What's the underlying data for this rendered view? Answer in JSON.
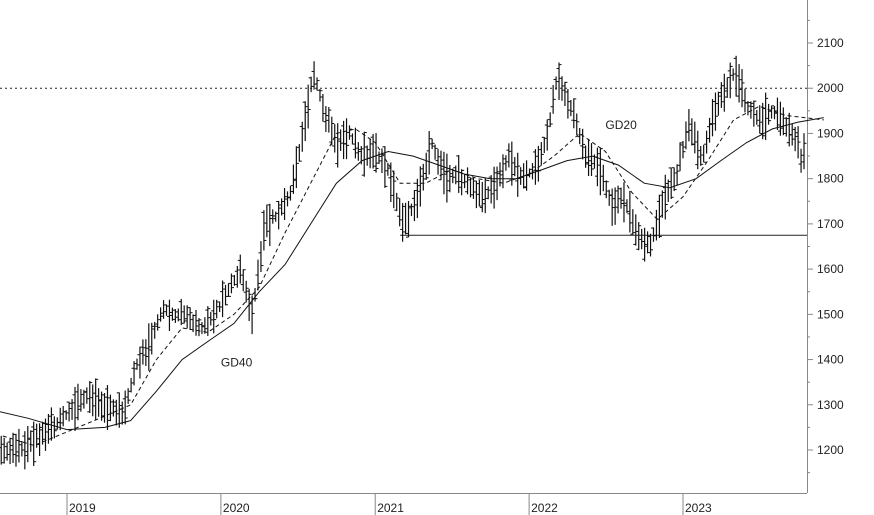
{
  "chart_data": {
    "type": "line",
    "subtype": "ohlc-bars",
    "title": "",
    "xlabel": "",
    "ylabel": "",
    "x_ticks": [
      "2019",
      "2020",
      "2021",
      "2022",
      "2023"
    ],
    "y_ticks": [
      1200,
      1300,
      1400,
      1500,
      1600,
      1700,
      1800,
      1900,
      2000,
      2100
    ],
    "ylim": [
      1120,
      2200
    ],
    "xlim": [
      "2018-07-01",
      "2023-12-15"
    ],
    "grid": false,
    "y_axis_position": "right",
    "series": [
      {
        "name": "",
        "style": "ohlc",
        "points": [
          {
            "date": "2018-07-01",
            "v": 1195
          },
          {
            "date": "2018-09-01",
            "v": 1200
          },
          {
            "date": "2018-11-01",
            "v": 1230
          },
          {
            "date": "2019-01-01",
            "v": 1280
          },
          {
            "date": "2019-02-15",
            "v": 1320
          },
          {
            "date": "2019-04-01",
            "v": 1295
          },
          {
            "date": "2019-05-15",
            "v": 1280
          },
          {
            "date": "2019-06-15",
            "v": 1390
          },
          {
            "date": "2019-07-15",
            "v": 1430
          },
          {
            "date": "2019-08-15",
            "v": 1510
          },
          {
            "date": "2019-09-15",
            "v": 1500
          },
          {
            "date": "2019-10-15",
            "v": 1495
          },
          {
            "date": "2019-11-15",
            "v": 1465
          },
          {
            "date": "2020-01-01",
            "v": 1520
          },
          {
            "date": "2020-02-15",
            "v": 1600
          },
          {
            "date": "2020-03-15",
            "v": 1500
          },
          {
            "date": "2020-04-15",
            "v": 1700
          },
          {
            "date": "2020-05-15",
            "v": 1720
          },
          {
            "date": "2020-06-15",
            "v": 1770
          },
          {
            "date": "2020-07-15",
            "v": 1900
          },
          {
            "date": "2020-08-07",
            "v": 2040
          },
          {
            "date": "2020-09-01",
            "v": 1950
          },
          {
            "date": "2020-10-01",
            "v": 1880
          },
          {
            "date": "2020-11-01",
            "v": 1900
          },
          {
            "date": "2020-12-01",
            "v": 1850
          },
          {
            "date": "2021-01-01",
            "v": 1860
          },
          {
            "date": "2021-02-01",
            "v": 1820
          },
          {
            "date": "2021-03-08",
            "v": 1700
          },
          {
            "date": "2021-04-15",
            "v": 1760
          },
          {
            "date": "2021-05-15",
            "v": 1880
          },
          {
            "date": "2021-06-15",
            "v": 1800
          },
          {
            "date": "2021-07-15",
            "v": 1810
          },
          {
            "date": "2021-08-15",
            "v": 1780
          },
          {
            "date": "2021-09-15",
            "v": 1760
          },
          {
            "date": "2021-10-15",
            "v": 1790
          },
          {
            "date": "2021-11-15",
            "v": 1850
          },
          {
            "date": "2021-12-15",
            "v": 1800
          },
          {
            "date": "2022-01-15",
            "v": 1820
          },
          {
            "date": "2022-02-15",
            "v": 1900
          },
          {
            "date": "2022-03-08",
            "v": 2020
          },
          {
            "date": "2022-04-15",
            "v": 1950
          },
          {
            "date": "2022-05-15",
            "v": 1850
          },
          {
            "date": "2022-06-15",
            "v": 1830
          },
          {
            "date": "2022-07-15",
            "v": 1740
          },
          {
            "date": "2022-08-15",
            "v": 1760
          },
          {
            "date": "2022-09-15",
            "v": 1670
          },
          {
            "date": "2022-10-15",
            "v": 1650
          },
          {
            "date": "2022-11-15",
            "v": 1750
          },
          {
            "date": "2022-12-15",
            "v": 1800
          },
          {
            "date": "2023-01-15",
            "v": 1920
          },
          {
            "date": "2023-02-15",
            "v": 1840
          },
          {
            "date": "2023-03-15",
            "v": 1950
          },
          {
            "date": "2023-04-15",
            "v": 2000
          },
          {
            "date": "2023-05-04",
            "v": 2040
          },
          {
            "date": "2023-06-01",
            "v": 1960
          },
          {
            "date": "2023-07-01",
            "v": 1930
          },
          {
            "date": "2023-08-01",
            "v": 1950
          },
          {
            "date": "2023-09-01",
            "v": 1920
          },
          {
            "date": "2023-10-01",
            "v": 1880
          },
          {
            "date": "2023-10-10",
            "v": 1830
          },
          {
            "date": "2023-11-01",
            "v": 1980
          },
          {
            "date": "2023-12-01",
            "v": 1960
          }
        ]
      },
      {
        "name": "GD20",
        "style": "dashed",
        "points": [
          {
            "date": "2018-07-01",
            "v": 1240
          },
          {
            "date": "2018-10-15",
            "v": 1210
          },
          {
            "date": "2019-01-01",
            "v": 1240
          },
          {
            "date": "2019-04-01",
            "v": 1275
          },
          {
            "date": "2019-06-01",
            "v": 1300
          },
          {
            "date": "2019-08-01",
            "v": 1400
          },
          {
            "date": "2019-10-01",
            "v": 1470
          },
          {
            "date": "2019-12-01",
            "v": 1460
          },
          {
            "date": "2020-02-01",
            "v": 1500
          },
          {
            "date": "2020-04-01",
            "v": 1560
          },
          {
            "date": "2020-06-01",
            "v": 1680
          },
          {
            "date": "2020-08-01",
            "v": 1790
          },
          {
            "date": "2020-10-01",
            "v": 1900
          },
          {
            "date": "2020-11-15",
            "v": 1910
          },
          {
            "date": "2021-01-01",
            "v": 1880
          },
          {
            "date": "2021-03-01",
            "v": 1790
          },
          {
            "date": "2021-05-01",
            "v": 1790
          },
          {
            "date": "2021-07-01",
            "v": 1820
          },
          {
            "date": "2021-09-01",
            "v": 1800
          },
          {
            "date": "2021-11-01",
            "v": 1790
          },
          {
            "date": "2022-01-01",
            "v": 1810
          },
          {
            "date": "2022-03-01",
            "v": 1850
          },
          {
            "date": "2022-05-01",
            "v": 1900
          },
          {
            "date": "2022-07-01",
            "v": 1860
          },
          {
            "date": "2022-09-01",
            "v": 1770
          },
          {
            "date": "2022-11-01",
            "v": 1710
          },
          {
            "date": "2023-01-01",
            "v": 1760
          },
          {
            "date": "2023-03-01",
            "v": 1840
          },
          {
            "date": "2023-05-01",
            "v": 1930
          },
          {
            "date": "2023-07-01",
            "v": 1960
          },
          {
            "date": "2023-09-01",
            "v": 1940
          },
          {
            "date": "2023-12-01",
            "v": 1930
          }
        ]
      },
      {
        "name": "GD40",
        "style": "solid",
        "points": [
          {
            "date": "2018-07-01",
            "v": 1290
          },
          {
            "date": "2018-10-01",
            "v": 1270
          },
          {
            "date": "2019-01-01",
            "v": 1245
          },
          {
            "date": "2019-04-01",
            "v": 1250
          },
          {
            "date": "2019-06-01",
            "v": 1265
          },
          {
            "date": "2019-08-01",
            "v": 1330
          },
          {
            "date": "2019-10-01",
            "v": 1400
          },
          {
            "date": "2019-12-01",
            "v": 1440
          },
          {
            "date": "2020-02-01",
            "v": 1480
          },
          {
            "date": "2020-04-01",
            "v": 1550
          },
          {
            "date": "2020-06-01",
            "v": 1610
          },
          {
            "date": "2020-08-01",
            "v": 1700
          },
          {
            "date": "2020-10-01",
            "v": 1790
          },
          {
            "date": "2020-12-01",
            "v": 1840
          },
          {
            "date": "2021-02-01",
            "v": 1860
          },
          {
            "date": "2021-04-01",
            "v": 1850
          },
          {
            "date": "2021-06-01",
            "v": 1830
          },
          {
            "date": "2021-08-01",
            "v": 1810
          },
          {
            "date": "2021-10-01",
            "v": 1800
          },
          {
            "date": "2021-12-01",
            "v": 1800
          },
          {
            "date": "2022-02-01",
            "v": 1820
          },
          {
            "date": "2022-04-01",
            "v": 1840
          },
          {
            "date": "2022-06-01",
            "v": 1850
          },
          {
            "date": "2022-08-01",
            "v": 1830
          },
          {
            "date": "2022-10-01",
            "v": 1790
          },
          {
            "date": "2022-12-01",
            "v": 1780
          },
          {
            "date": "2023-02-01",
            "v": 1800
          },
          {
            "date": "2023-04-01",
            "v": 1840
          },
          {
            "date": "2023-06-01",
            "v": 1880
          },
          {
            "date": "2023-08-01",
            "v": 1910
          },
          {
            "date": "2023-10-01",
            "v": 1925
          },
          {
            "date": "2023-12-01",
            "v": 1935
          }
        ]
      }
    ],
    "reference_lines": [
      {
        "type": "horizontal",
        "value": 2000,
        "style": "dotted",
        "from": "2018-07-01",
        "to": "2023-12-15"
      },
      {
        "type": "horizontal",
        "value": 1675,
        "style": "solid",
        "from": "2021-03-01",
        "to": "2023-12-15"
      }
    ],
    "annotations": [
      {
        "text": "GD20",
        "date": "2022-07-01",
        "v": 1910
      },
      {
        "text": "GD40",
        "date": "2020-01-01",
        "v": 1385
      }
    ]
  }
}
